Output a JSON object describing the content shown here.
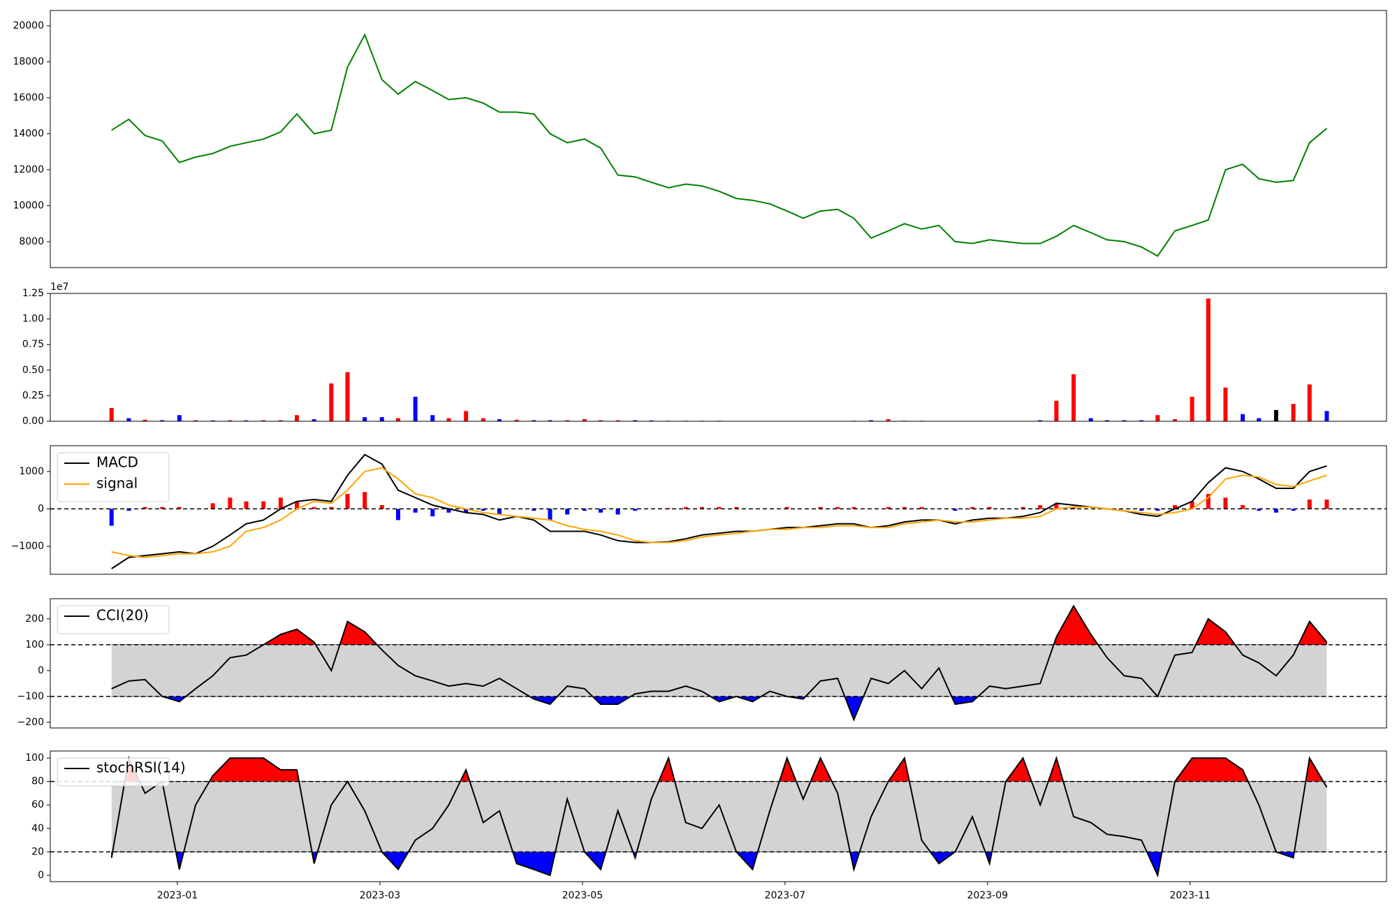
{
  "chart_data": [
    {
      "type": "line",
      "color": "green",
      "x": [
        -0.65,
        -0.48,
        -0.32,
        -0.15,
        0.02,
        0.18,
        0.35,
        0.52,
        0.68,
        0.85,
        1.02,
        1.18,
        1.35,
        1.52,
        1.68,
        1.85,
        2.02,
        2.18,
        2.35,
        2.52,
        2.68,
        2.85,
        3.02,
        3.18,
        3.35,
        3.52,
        3.68,
        3.85,
        4.02,
        4.18,
        4.35,
        4.52,
        4.68,
        4.85,
        5.02,
        5.18,
        5.35,
        5.52,
        5.68,
        5.85,
        6.02,
        6.18,
        6.35,
        6.52,
        6.68,
        6.85,
        7.02,
        7.18,
        7.35,
        7.52,
        7.68,
        7.85,
        8.02,
        8.18,
        8.35,
        8.52,
        8.68,
        8.85,
        9.02,
        9.18,
        9.35,
        9.52,
        9.68,
        9.85,
        10.02,
        10.18,
        10.35,
        10.52,
        10.68,
        10.85,
        11.02,
        11.18,
        11.35
      ],
      "values": [
        14200,
        14800,
        13900,
        13600,
        12400,
        12700,
        12900,
        13300,
        13500,
        13700,
        14100,
        15100,
        14000,
        14200,
        17700,
        19500,
        17000,
        16200,
        16900,
        16400,
        15900,
        16000,
        15700,
        15200,
        15200,
        15100,
        14000,
        13500,
        13700,
        13200,
        11700,
        11600,
        11300,
        11000,
        11200,
        11100,
        10800,
        10400,
        10300,
        10100,
        9700,
        9300,
        9700,
        9800,
        9300,
        8200,
        8600,
        9000,
        8700,
        8900,
        8000,
        7900,
        8100,
        8000,
        7900,
        7900,
        8300,
        8900,
        8500,
        8100,
        8000,
        7700,
        7200,
        8600,
        8900,
        9200,
        12000,
        12300,
        11500,
        11300,
        11400,
        13500,
        14300
      ],
      "xlim": [
        -1.255,
        11.94
      ],
      "ylim": [
        6560,
        20850
      ],
      "yticks": [
        8000,
        10000,
        12000,
        14000,
        16000,
        18000,
        20000
      ]
    },
    {
      "type": "bar",
      "offset_text": "1e7",
      "x": [
        -0.65,
        -0.48,
        -0.32,
        -0.15,
        0.02,
        0.18,
        0.35,
        0.52,
        0.68,
        0.85,
        1.02,
        1.18,
        1.35,
        1.52,
        1.68,
        1.85,
        2.02,
        2.18,
        2.35,
        2.52,
        2.68,
        2.85,
        3.02,
        3.18,
        3.35,
        3.52,
        3.68,
        3.85,
        4.02,
        4.18,
        4.35,
        4.52,
        4.68,
        4.85,
        5.02,
        5.18,
        5.35,
        5.52,
        5.68,
        5.85,
        6.02,
        6.18,
        6.35,
        6.52,
        6.68,
        6.85,
        7.02,
        7.18,
        7.35,
        7.52,
        7.68,
        7.85,
        8.02,
        8.18,
        8.35,
        8.52,
        8.68,
        8.85,
        9.02,
        9.18,
        9.35,
        9.52,
        9.68,
        9.85,
        10.02,
        10.18,
        10.35,
        10.52,
        10.68,
        10.85,
        11.02,
        11.18,
        11.35
      ],
      "values": [
        1300000,
        300000,
        150000,
        100000,
        600000,
        100000,
        80000,
        100000,
        80000,
        100000,
        100000,
        600000,
        200000,
        3700000,
        4800000,
        400000,
        400000,
        300000,
        2400000,
        600000,
        300000,
        1000000,
        300000,
        200000,
        150000,
        100000,
        100000,
        100000,
        200000,
        100000,
        100000,
        100000,
        80000,
        50000,
        50000,
        50000,
        50000,
        30000,
        30000,
        30000,
        30000,
        30000,
        30000,
        30000,
        50000,
        100000,
        200000,
        50000,
        50000,
        30000,
        20000,
        20000,
        20000,
        20000,
        20000,
        100000,
        2000000,
        4600000,
        300000,
        100000,
        100000,
        100000,
        600000,
        200000,
        2400000,
        12000000,
        3300000,
        700000,
        300000,
        1100000,
        1700000,
        3600000,
        1000000
      ],
      "colors": [
        "red",
        "blue",
        "red",
        "blue",
        "blue",
        "red",
        "blue",
        "red",
        "blue",
        "red",
        "red",
        "red",
        "blue",
        "red",
        "red",
        "blue",
        "blue",
        "red",
        "blue",
        "blue",
        "red",
        "red",
        "red",
        "blue",
        "red",
        "blue",
        "blue",
        "red",
        "red",
        "red",
        "red",
        "blue",
        "blue",
        "blue",
        "blue",
        "blue",
        "blue",
        "blue",
        "blue",
        "blue",
        "blue",
        "blue",
        "blue",
        "blue",
        "blue",
        "blue",
        "red",
        "blue",
        "blue",
        "blue",
        "blue",
        "blue",
        "blue",
        "blue",
        "blue",
        "blue",
        "red",
        "red",
        "blue",
        "blue",
        "blue",
        "blue",
        "red",
        "red",
        "red",
        "red",
        "red",
        "blue",
        "blue",
        "black",
        "red",
        "red",
        "blue"
      ],
      "xlim": [
        -1.255,
        11.94
      ],
      "ylim": [
        0,
        12500000
      ],
      "yticks": [
        {
          "value": 0,
          "label": "0.00"
        },
        {
          "value": 2500000,
          "label": "0.25"
        },
        {
          "value": 5000000,
          "label": "0.50"
        },
        {
          "value": 7500000,
          "label": "0.75"
        },
        {
          "value": 10000000,
          "label": "1.00"
        },
        {
          "value": 12500000,
          "label": "1.25"
        }
      ]
    },
    {
      "type": "macd",
      "legend": "upper left",
      "hlines": [
        0
      ],
      "x": [
        -0.65,
        -0.48,
        -0.32,
        -0.15,
        0.02,
        0.18,
        0.35,
        0.52,
        0.68,
        0.85,
        1.02,
        1.18,
        1.35,
        1.52,
        1.68,
        1.85,
        2.02,
        2.18,
        2.35,
        2.52,
        2.68,
        2.85,
        3.02,
        3.18,
        3.35,
        3.52,
        3.68,
        3.85,
        4.02,
        4.18,
        4.35,
        4.52,
        4.68,
        4.85,
        5.02,
        5.18,
        5.35,
        5.52,
        5.68,
        5.85,
        6.02,
        6.18,
        6.35,
        6.52,
        6.68,
        6.85,
        7.02,
        7.18,
        7.35,
        7.52,
        7.68,
        7.85,
        8.02,
        8.18,
        8.35,
        8.52,
        8.68,
        8.85,
        9.02,
        9.18,
        9.35,
        9.52,
        9.68,
        9.85,
        10.02,
        10.18,
        10.35,
        10.52,
        10.68,
        10.85,
        11.02,
        11.18,
        11.35
      ],
      "series": [
        {
          "name": "MACD",
          "color": "black",
          "values": [
            -1600,
            -1300,
            -1250,
            -1200,
            -1150,
            -1200,
            -1000,
            -700,
            -400,
            -300,
            0,
            200,
            250,
            200,
            900,
            1450,
            1200,
            500,
            300,
            100,
            0,
            -100,
            -150,
            -300,
            -200,
            -300,
            -600,
            -600,
            -600,
            -700,
            -850,
            -900,
            -900,
            -880,
            -800,
            -700,
            -650,
            -600,
            -600,
            -550,
            -500,
            -500,
            -450,
            -400,
            -400,
            -500,
            -450,
            -350,
            -300,
            -300,
            -400,
            -300,
            -250,
            -250,
            -200,
            -100,
            150,
            100,
            50,
            0,
            -50,
            -150,
            -200,
            0,
            200,
            700,
            1100,
            1000,
            800,
            550,
            550,
            1000,
            1150
          ]
        },
        {
          "name": "signal",
          "color": "orange",
          "values": [
            -1150,
            -1250,
            -1300,
            -1250,
            -1200,
            -1200,
            -1150,
            -1000,
            -600,
            -500,
            -300,
            0,
            200,
            150,
            500,
            1000,
            1100,
            800,
            400,
            300,
            100,
            0,
            -100,
            -150,
            -200,
            -250,
            -300,
            -450,
            -550,
            -600,
            -700,
            -850,
            -900,
            -900,
            -850,
            -750,
            -700,
            -650,
            -600,
            -550,
            -550,
            -500,
            -500,
            -450,
            -450,
            -500,
            -500,
            -400,
            -350,
            -300,
            -350,
            -350,
            -300,
            -250,
            -250,
            -200,
            0,
            50,
            50,
            0,
            -50,
            -100,
            -150,
            -100,
            0,
            300,
            800,
            900,
            850,
            650,
            600,
            750,
            900
          ]
        }
      ],
      "histogram": {
        "up_color": "red",
        "down_color": "blue",
        "values": [
          -450,
          -50,
          50,
          50,
          50,
          0,
          150,
          300,
          200,
          200,
          300,
          200,
          50,
          50,
          400,
          450,
          100,
          -300,
          -100,
          -200,
          -100,
          -100,
          -50,
          -150,
          0,
          -50,
          -300,
          -150,
          -50,
          -100,
          -150,
          -50,
          0,
          20,
          50,
          50,
          50,
          50,
          0,
          0,
          50,
          0,
          50,
          50,
          50,
          0,
          50,
          50,
          50,
          0,
          -50,
          50,
          50,
          0,
          50,
          100,
          150,
          50,
          0,
          0,
          0,
          -50,
          -50,
          100,
          200,
          400,
          300,
          100,
          -50,
          -100,
          -50,
          250,
          250
        ]
      },
      "xlim": [
        -1.255,
        11.94
      ],
      "ylim": [
        -1750,
        1690
      ],
      "yticks": [
        {
          "value": -1000,
          "label": "−1000"
        },
        0,
        1000
      ]
    },
    {
      "type": "oscillator",
      "legend": "upper left",
      "bands": {
        "upper": 100,
        "lower": -100,
        "upper_color": "red",
        "lower_color": "blue",
        "band_color": "lightgray"
      },
      "x": [
        -0.65,
        -0.48,
        -0.32,
        -0.15,
        0.02,
        0.18,
        0.35,
        0.52,
        0.68,
        0.85,
        1.02,
        1.18,
        1.35,
        1.52,
        1.68,
        1.85,
        2.02,
        2.18,
        2.35,
        2.52,
        2.68,
        2.85,
        3.02,
        3.18,
        3.35,
        3.52,
        3.68,
        3.85,
        4.02,
        4.18,
        4.35,
        4.52,
        4.68,
        4.85,
        5.02,
        5.18,
        5.35,
        5.52,
        5.68,
        5.85,
        6.02,
        6.18,
        6.35,
        6.52,
        6.68,
        6.85,
        7.02,
        7.18,
        7.35,
        7.52,
        7.68,
        7.85,
        8.02,
        8.18,
        8.35,
        8.52,
        8.68,
        8.85,
        9.02,
        9.18,
        9.35,
        9.52,
        9.68,
        9.85,
        10.02,
        10.18,
        10.35,
        10.52,
        10.68,
        10.85,
        11.02,
        11.18,
        11.35
      ],
      "series": [
        {
          "name": "CCI(20)",
          "color": "black",
          "values": [
            -70,
            -40,
            -35,
            -100,
            -120,
            -70,
            -20,
            50,
            60,
            100,
            140,
            160,
            110,
            0,
            190,
            150,
            80,
            20,
            -20,
            -40,
            -60,
            -50,
            -60,
            -30,
            -70,
            -110,
            -130,
            -60,
            -70,
            -130,
            -130,
            -90,
            -80,
            -80,
            -60,
            -80,
            -120,
            -100,
            -120,
            -80,
            -100,
            -110,
            -40,
            -30,
            -190,
            -30,
            -50,
            0,
            -70,
            10,
            -130,
            -120,
            -60,
            -70,
            -60,
            -50,
            130,
            250,
            140,
            50,
            -20,
            -30,
            -100,
            60,
            70,
            200,
            150,
            60,
            30,
            -20,
            60,
            190,
            110
          ]
        }
      ],
      "xlim": [
        -1.255,
        11.94
      ],
      "ylim": [
        -222,
        278
      ],
      "yticks": [
        {
          "value": -200,
          "label": "−200"
        },
        {
          "value": -100,
          "label": "−100"
        },
        0,
        100,
        200
      ]
    },
    {
      "type": "oscillator",
      "legend": "upper left",
      "bands": {
        "upper": 80,
        "lower": 20,
        "upper_color": "red",
        "lower_color": "blue",
        "band_color": "lightgray"
      },
      "x": [
        -0.65,
        -0.48,
        -0.32,
        -0.15,
        0.02,
        0.18,
        0.35,
        0.52,
        0.68,
        0.85,
        1.02,
        1.18,
        1.35,
        1.52,
        1.68,
        1.85,
        2.02,
        2.18,
        2.35,
        2.52,
        2.68,
        2.85,
        3.02,
        3.18,
        3.35,
        3.52,
        3.68,
        3.85,
        4.02,
        4.18,
        4.35,
        4.52,
        4.68,
        4.85,
        5.02,
        5.18,
        5.35,
        5.52,
        5.68,
        5.85,
        6.02,
        6.18,
        6.35,
        6.52,
        6.68,
        6.85,
        7.02,
        7.18,
        7.35,
        7.52,
        7.68,
        7.85,
        8.02,
        8.18,
        8.35,
        8.52,
        8.68,
        8.85,
        9.02,
        9.18,
        9.35,
        9.52,
        9.68,
        9.85,
        10.02,
        10.18,
        10.35,
        10.52,
        10.68,
        10.85,
        11.02,
        11.18,
        11.35
      ],
      "series": [
        {
          "name": "stochRSI(14)",
          "color": "black",
          "values": [
            15,
            100,
            70,
            80,
            5,
            60,
            85,
            100,
            100,
            100,
            90,
            90,
            10,
            60,
            80,
            55,
            20,
            5,
            30,
            40,
            60,
            90,
            45,
            55,
            10,
            5,
            0,
            65,
            20,
            5,
            55,
            15,
            65,
            100,
            45,
            40,
            60,
            20,
            5,
            55,
            100,
            65,
            100,
            70,
            5,
            50,
            80,
            100,
            30,
            10,
            20,
            50,
            10,
            80,
            100,
            60,
            100,
            50,
            45,
            35,
            33,
            30,
            0,
            80,
            100,
            100,
            100,
            90,
            60,
            20,
            15,
            100,
            75
          ]
        }
      ],
      "xlim": [
        -1.255,
        11.94
      ],
      "ylim": [
        -5.4,
        106
      ],
      "yticks": [
        0,
        20,
        40,
        60,
        80,
        100
      ],
      "xticks": [
        {
          "value": 0,
          "label": "2023-01"
        },
        {
          "value": 2,
          "label": "2023-03"
        },
        {
          "value": 4,
          "label": "2023-05"
        },
        {
          "value": 6,
          "label": "2023-07"
        },
        {
          "value": 8,
          "label": "2023-09"
        },
        {
          "value": 10,
          "label": "2023-11"
        }
      ]
    }
  ]
}
